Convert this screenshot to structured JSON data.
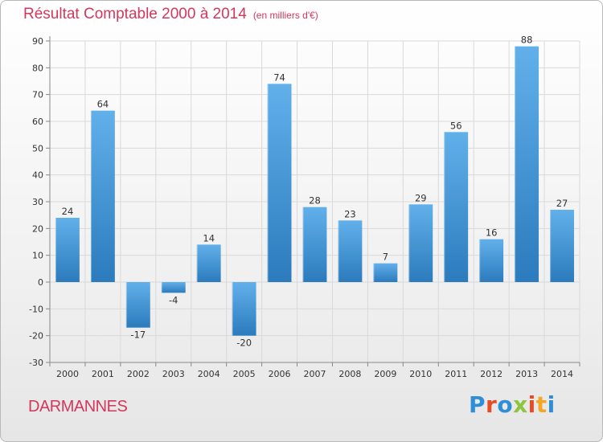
{
  "chart_data": {
    "type": "bar",
    "title": "Résultat Comptable 2000 à 2014",
    "subtitle": "(en milliers d'€)",
    "categories": [
      "2000",
      "2001",
      "2002",
      "2003",
      "2004",
      "2005",
      "2006",
      "2007",
      "2008",
      "2009",
      "2010",
      "2011",
      "2012",
      "2013",
      "2014"
    ],
    "values": [
      24,
      64,
      -17,
      -4,
      14,
      -20,
      74,
      28,
      23,
      7,
      29,
      56,
      16,
      88,
      27
    ],
    "data_labels": [
      "24",
      "64",
      "-17",
      "-4",
      "14",
      "-20",
      "74",
      "28",
      "23",
      "7",
      "29",
      "56",
      "16",
      "88",
      "27"
    ],
    "yticks": [
      90,
      80,
      70,
      60,
      50,
      40,
      30,
      20,
      10,
      0,
      -10,
      -20,
      -30
    ],
    "ylim": [
      -30,
      90
    ],
    "xlabel": "",
    "ylabel": "",
    "grid": true,
    "colors": {
      "bar_light": "#62b0ea",
      "bar_dark": "#2b7bbd",
      "grid": "#d9d9d9",
      "axis": "#888888"
    }
  },
  "footer": {
    "commune": "DARMANNES",
    "logo_letters": [
      {
        "char": "P",
        "color": "#2f8fd6"
      },
      {
        "char": "r",
        "color": "#e44d26"
      },
      {
        "char": "o",
        "color": "#2f8fd6"
      },
      {
        "char": "x",
        "color": "#8cc63f"
      },
      {
        "char": "i",
        "color": "#e44d26"
      },
      {
        "char": "t",
        "color": "#f5a623"
      },
      {
        "char": "i",
        "color": "#2f8fd6"
      }
    ]
  }
}
